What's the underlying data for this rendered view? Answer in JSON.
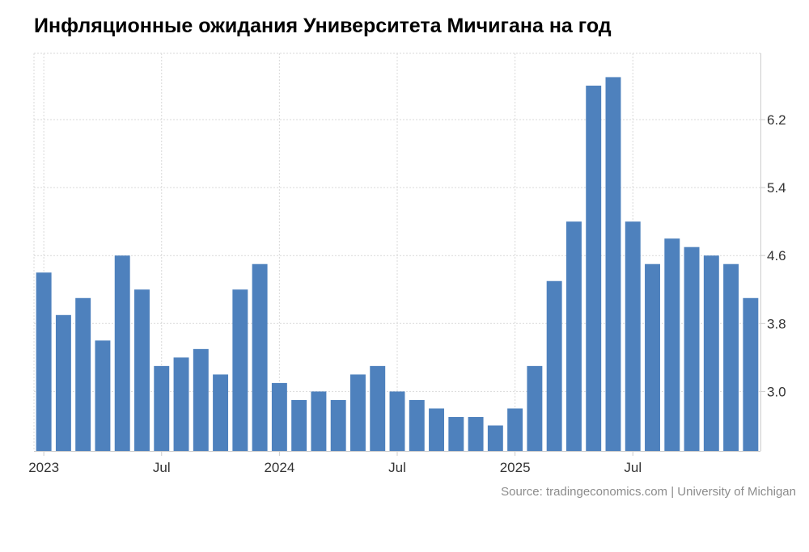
{
  "chart_data": {
    "type": "bar",
    "title": "Инфляционные ожидания Университета Мичигана на год",
    "categories": [
      "2023-01",
      "2023-02",
      "2023-03",
      "2023-04",
      "2023-05",
      "2023-06",
      "2023-07",
      "2023-08",
      "2023-09",
      "2023-10",
      "2023-11",
      "2023-12",
      "2024-01",
      "2024-02",
      "2024-03",
      "2024-04",
      "2024-05",
      "2024-06",
      "2024-07",
      "2024-08",
      "2024-09",
      "2024-10",
      "2024-11",
      "2024-12",
      "2025-01",
      "2025-02",
      "2025-03",
      "2025-04",
      "2025-05",
      "2025-06",
      "2025-07",
      "2025-08",
      "2025-09",
      "2025-10",
      "2025-11",
      "2025-12",
      "2026-01"
    ],
    "values": [
      4.4,
      3.9,
      4.1,
      3.6,
      4.6,
      4.2,
      3.3,
      3.4,
      3.5,
      3.2,
      4.2,
      4.5,
      3.1,
      2.9,
      3.0,
      2.9,
      3.2,
      3.3,
      3.0,
      2.9,
      2.8,
      2.7,
      2.7,
      2.6,
      2.8,
      3.3,
      4.3,
      5.0,
      6.6,
      6.7,
      5.0,
      4.5,
      4.8,
      4.7,
      4.6,
      4.5,
      4.1
    ],
    "ylim": [
      2.3,
      6.98
    ],
    "yticks": [
      3.0,
      3.8,
      4.6,
      5.4,
      6.2
    ],
    "ytick_labels": [
      "3.0",
      "3.8",
      "4.6",
      "5.4",
      "6.2"
    ],
    "xticks": [
      {
        "index": 0,
        "label": "2023"
      },
      {
        "index": 6,
        "label": "Jul"
      },
      {
        "index": 12,
        "label": "2024"
      },
      {
        "index": 18,
        "label": "Jul"
      },
      {
        "index": 24,
        "label": "2025"
      },
      {
        "index": 30,
        "label": "Jul"
      }
    ],
    "grid": true,
    "bar_color": "#4e81bd",
    "source": "Source: tradingeconomics.com | University of Michigan"
  }
}
